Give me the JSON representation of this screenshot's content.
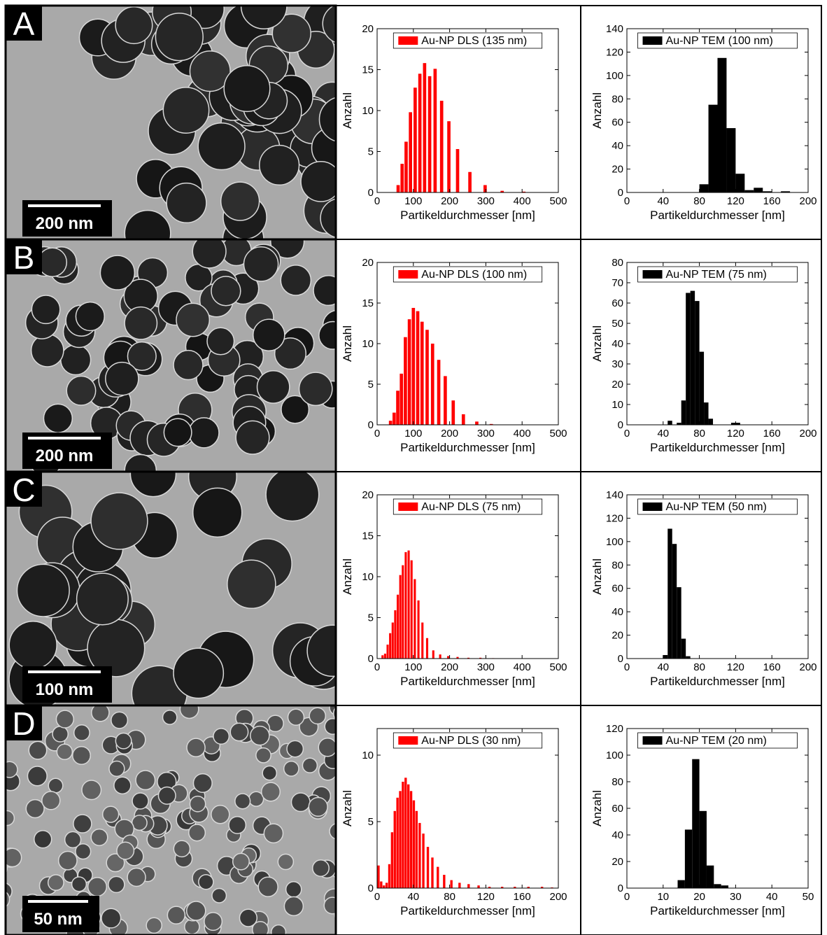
{
  "panels": [
    {
      "letter": "A",
      "scale_bar": "200 nm",
      "dls": {
        "type": "bar",
        "legend": "Au-NP DLS (135 nm)",
        "color": "#ff0000",
        "xlabel": "Partikeldurchmesser [nm]",
        "ylabel": "Anzahl",
        "xlim": [
          0,
          500
        ],
        "ylim": [
          0,
          20
        ],
        "xticks": [
          0,
          100,
          200,
          300,
          400,
          500
        ],
        "yticks": [
          0,
          5,
          10,
          15,
          20
        ],
        "bin_width": 9,
        "x": [
          58,
          69,
          80,
          92,
          105,
          118,
          131,
          145,
          160,
          178,
          198,
          222,
          256,
          298,
          345,
          405
        ],
        "values": [
          0.9,
          3.5,
          6.2,
          9.8,
          12.8,
          14.5,
          15.8,
          14.2,
          15.1,
          11.2,
          8.7,
          5.3,
          2.5,
          0.9,
          0.2,
          0.1
        ]
      },
      "tem": {
        "type": "bar",
        "legend": "Au-NP TEM (100 nm)",
        "color": "#000000",
        "xlabel": "Partikeldurchmesser [nm]",
        "ylabel": "Anzahl",
        "xlim": [
          0,
          200
        ],
        "ylim": [
          0,
          140
        ],
        "xticks": [
          0,
          40,
          80,
          120,
          160,
          200
        ],
        "yticks": [
          0,
          20,
          40,
          60,
          80,
          100,
          120,
          140
        ],
        "bin_width": 10,
        "x": [
          85,
          95,
          105,
          115,
          125,
          135,
          145,
          155,
          175
        ],
        "values": [
          7,
          75,
          115,
          55,
          16,
          2,
          4,
          1,
          1
        ]
      }
    },
    {
      "letter": "B",
      "scale_bar": "200 nm",
      "dls": {
        "type": "bar",
        "legend": "Au-NP DLS (100 nm)",
        "color": "#ff0000",
        "xlabel": "Partikeldurchmesser [nm]",
        "ylabel": "Anzahl",
        "xlim": [
          0,
          500
        ],
        "ylim": [
          0,
          20
        ],
        "xticks": [
          0,
          100,
          200,
          300,
          400,
          500
        ],
        "yticks": [
          0,
          5,
          10,
          15,
          20
        ],
        "bin_width": 9,
        "x": [
          37,
          47,
          57,
          67,
          78,
          89,
          100,
          112,
          124,
          138,
          153,
          170,
          188,
          210,
          238,
          275,
          315
        ],
        "values": [
          0.5,
          1.5,
          4.2,
          6.3,
          10.8,
          13.0,
          14.4,
          14.0,
          12.7,
          11.7,
          10.0,
          8.0,
          6.0,
          3.0,
          1.3,
          0.4,
          0.1
        ]
      },
      "tem": {
        "type": "bar",
        "legend": "Au-NP TEM (75 nm)",
        "color": "#000000",
        "xlabel": "Partikeldurchmesser [nm]",
        "ylabel": "Anzahl",
        "xlim": [
          0,
          200
        ],
        "ylim": [
          0,
          80
        ],
        "xticks": [
          0,
          40,
          80,
          120,
          160,
          200
        ],
        "yticks": [
          0,
          10,
          20,
          30,
          40,
          50,
          60,
          70,
          80
        ],
        "bin_width": 5,
        "x": [
          47.5,
          57.5,
          62.5,
          67.5,
          72.5,
          77.5,
          82.5,
          87.5,
          92.5,
          117.5,
          122.5
        ],
        "values": [
          2,
          1,
          12,
          65,
          66,
          61,
          36,
          11,
          3,
          1,
          1
        ]
      }
    },
    {
      "letter": "C",
      "scale_bar": "100 nm",
      "dls": {
        "type": "bar",
        "legend": "Au-NP DLS (75 nm)",
        "color": "#ff0000",
        "xlabel": "Partikeldurchmesser [nm]",
        "ylabel": "Anzahl",
        "xlim": [
          0,
          500
        ],
        "ylim": [
          0,
          20
        ],
        "xticks": [
          0,
          100,
          200,
          300,
          400,
          500
        ],
        "yticks": [
          0,
          5,
          10,
          15,
          20
        ],
        "bin_width": 6,
        "x": [
          15,
          22,
          29,
          36,
          43,
          50,
          57,
          64,
          71,
          79,
          87,
          95,
          104,
          114,
          125,
          138,
          155,
          174,
          196,
          222,
          252,
          285,
          320
        ],
        "values": [
          0.4,
          0.6,
          1.7,
          3.1,
          4.4,
          5.9,
          7.8,
          10.2,
          11.4,
          13.0,
          13.2,
          12.0,
          9.7,
          7.1,
          4.4,
          2.5,
          1.0,
          0.5,
          0.3,
          0.2,
          0.1,
          0.1,
          0.05
        ]
      },
      "tem": {
        "type": "bar",
        "legend": "Au-NP TEM (50 nm)",
        "color": "#000000",
        "xlabel": "Partikeldurchmesser [nm]",
        "ylabel": "Anzahl",
        "xlim": [
          0,
          200
        ],
        "ylim": [
          0,
          140
        ],
        "xticks": [
          0,
          40,
          80,
          120,
          160,
          200
        ],
        "yticks": [
          0,
          20,
          40,
          60,
          80,
          100,
          120,
          140
        ],
        "bin_width": 5,
        "x": [
          42.5,
          47.5,
          52.5,
          57.5,
          62.5,
          67.5
        ],
        "values": [
          3,
          111,
          98,
          61,
          17,
          2
        ]
      }
    },
    {
      "letter": "D",
      "scale_bar": "50 nm",
      "dls": {
        "type": "bar",
        "legend": "Au-NP DLS (30 nm)",
        "color": "#ff0000",
        "xlabel": "Partikeldurchmesser [nm]",
        "ylabel": "Anzahl",
        "xlim": [
          0,
          200
        ],
        "ylim": [
          0,
          12
        ],
        "xticks": [
          0,
          40,
          80,
          120,
          160,
          200
        ],
        "yticks": [
          0,
          5,
          10
        ],
        "bin_width": 2.6,
        "x": [
          1.5,
          4.5,
          7.5,
          10.5,
          13.5,
          16.5,
          19.5,
          22.5,
          25.5,
          28.5,
          31.5,
          34.5,
          37.5,
          40.5,
          43.5,
          47,
          51,
          56,
          61,
          67,
          74,
          82,
          91,
          101,
          112,
          124,
          138,
          152,
          167,
          182,
          193
        ],
        "values": [
          1.7,
          0.5,
          0.2,
          0.4,
          1.8,
          4.2,
          5.8,
          6.8,
          7.3,
          8.0,
          8.3,
          7.8,
          7.3,
          6.6,
          5.8,
          4.9,
          4.1,
          3.1,
          2.3,
          1.6,
          1.0,
          0.6,
          0.4,
          0.3,
          0.2,
          0.1,
          0.1,
          0.1,
          0.1,
          0.1,
          0.05
        ]
      },
      "tem": {
        "type": "bar",
        "legend": "Au-NP TEM (20 nm)",
        "color": "#000000",
        "xlabel": "Partikeldurchmesser [nm]",
        "ylabel": "Anzahl",
        "xlim": [
          0,
          50
        ],
        "ylim": [
          0,
          120
        ],
        "xticks": [
          0,
          10,
          20,
          30,
          40,
          50
        ],
        "yticks": [
          0,
          20,
          40,
          60,
          80,
          100,
          120
        ],
        "bin_width": 2,
        "x": [
          15,
          17,
          19,
          21,
          23,
          25,
          27
        ],
        "values": [
          6,
          44,
          97,
          58,
          17,
          3,
          2
        ]
      }
    }
  ]
}
